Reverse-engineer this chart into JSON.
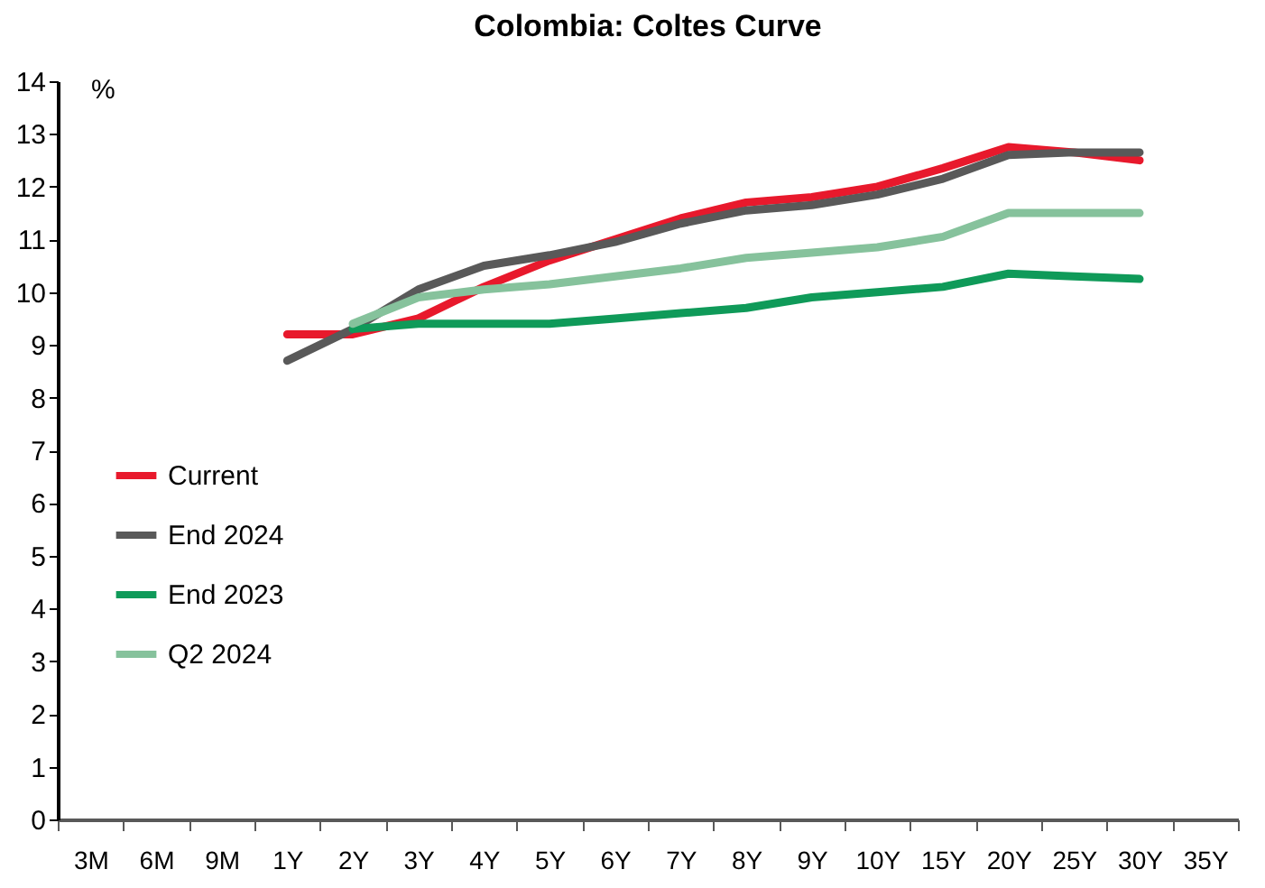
{
  "chart_data": {
    "type": "line",
    "title": "Colombia: Coltes Curve",
    "ylabel": "%",
    "categories": [
      "3M",
      "6M",
      "9M",
      "1Y",
      "2Y",
      "3Y",
      "4Y",
      "5Y",
      "6Y",
      "7Y",
      "8Y",
      "9Y",
      "10Y",
      "15Y",
      "20Y",
      "25Y",
      "30Y",
      "35Y"
    ],
    "series": [
      {
        "name": "Current",
        "color": "#e8192c",
        "values": [
          null,
          null,
          null,
          9.2,
          9.2,
          9.5,
          10.1,
          10.6,
          11.0,
          11.4,
          11.7,
          11.8,
          12.0,
          12.35,
          12.75,
          12.65,
          12.5,
          null
        ]
      },
      {
        "name": "End 2024",
        "color": "#595959",
        "values": [
          null,
          null,
          null,
          8.7,
          9.3,
          10.05,
          10.5,
          10.7,
          10.95,
          11.3,
          11.55,
          11.65,
          11.85,
          12.15,
          12.6,
          12.65,
          12.65,
          null
        ]
      },
      {
        "name": "End 2023",
        "color": "#0f9a59",
        "values": [
          null,
          null,
          null,
          null,
          9.3,
          9.4,
          9.4,
          9.4,
          9.5,
          9.6,
          9.7,
          9.9,
          10.0,
          10.1,
          10.35,
          10.3,
          10.25,
          null
        ]
      },
      {
        "name": "Q2 2024",
        "color": "#86c29c",
        "values": [
          null,
          null,
          null,
          null,
          9.4,
          9.9,
          10.05,
          10.15,
          10.3,
          10.45,
          10.65,
          10.75,
          10.85,
          11.05,
          11.5,
          11.5,
          11.5,
          null
        ]
      }
    ],
    "ylim": [
      0,
      14
    ],
    "yticks": [
      0,
      1,
      2,
      3,
      4,
      5,
      6,
      7,
      8,
      9,
      10,
      11,
      12,
      13,
      14
    ],
    "grid": false,
    "legend": "left",
    "marker": "none",
    "line_style": "solid"
  }
}
